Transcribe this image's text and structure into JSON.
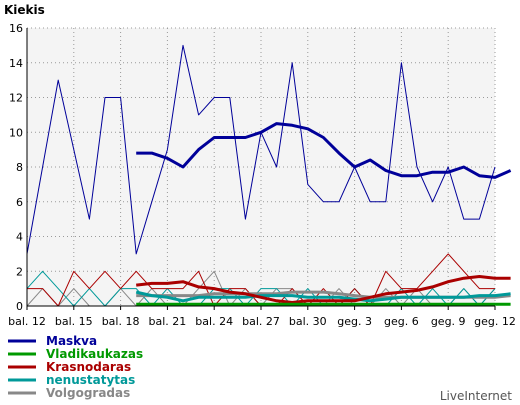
{
  "chart_data": {
    "type": "line",
    "title": "Kiekis",
    "ylim": [
      0,
      16
    ],
    "y_ticks": [
      0,
      2,
      4,
      6,
      8,
      10,
      12,
      14,
      16
    ],
    "x_tick_labels": [
      "bal. 12",
      "bal. 15",
      "bal. 18",
      "bal. 21",
      "bal. 24",
      "bal. 27",
      "bal. 30",
      "geg. 3",
      "geg. 6",
      "geg. 9",
      "geg. 12"
    ],
    "x_tick_step": 3,
    "days": 31,
    "grid": true,
    "brand": "LiveInternet",
    "series": [
      {
        "name": "Maskva",
        "color": "#000099",
        "daily": [
          3,
          8,
          13,
          9,
          5,
          12,
          12,
          3,
          6,
          9,
          15,
          11,
          12,
          12,
          5,
          10,
          8,
          14,
          7,
          6,
          6,
          8,
          6,
          6,
          14,
          8,
          6,
          8,
          5,
          5,
          8
        ],
        "avg_start": 7,
        "average": [
          8.8,
          8.8,
          8.5,
          8,
          9,
          9.7,
          9.7,
          9.7,
          10,
          10.5,
          10.4,
          10.2,
          9.7,
          8.8,
          8,
          8.4,
          7.8,
          7.5,
          7.5,
          7.7,
          7.7,
          8,
          7.5,
          7.4,
          7.8
        ]
      },
      {
        "name": "Vladikaukazas",
        "color": "#009900",
        "daily": [
          0,
          0,
          0,
          0,
          0,
          0,
          0,
          0,
          0,
          0,
          0,
          0,
          0,
          0,
          0,
          0,
          0,
          0,
          0,
          0,
          0,
          0,
          0,
          0,
          0,
          0,
          0,
          0,
          0,
          0,
          0
        ],
        "avg_start": 7,
        "average": [
          0.1,
          0.1,
          0.1,
          0.1,
          0.1,
          0.1,
          0.1,
          0.1,
          0.1,
          0.1,
          0.1,
          0.1,
          0.1,
          0.1,
          0.1,
          0.1,
          0.1,
          0.1,
          0.1,
          0.1,
          0.1,
          0.1,
          0.1,
          0.1,
          0.1
        ]
      },
      {
        "name": "Krasnodaras",
        "color": "#aa0000",
        "daily": [
          1,
          1,
          0,
          2,
          1,
          2,
          1,
          2,
          1,
          1,
          1,
          2,
          0,
          1,
          1,
          0,
          0,
          1,
          0,
          1,
          0,
          1,
          0,
          2,
          1,
          1,
          2,
          3,
          2,
          1,
          1
        ],
        "avg_start": 7,
        "average": [
          1.2,
          1.3,
          1.3,
          1.4,
          1.1,
          1,
          0.8,
          0.7,
          0.5,
          0.3,
          0.2,
          0.3,
          0.3,
          0.3,
          0.3,
          0.5,
          0.7,
          0.8,
          0.9,
          1.1,
          1.4,
          1.6,
          1.7,
          1.6,
          1.6
        ]
      },
      {
        "name": "nenustatytas",
        "color": "#009999",
        "daily": [
          1,
          2,
          1,
          0,
          1,
          0,
          1,
          1,
          0,
          1,
          0,
          0,
          1,
          1,
          0,
          1,
          1,
          0,
          1,
          0,
          0,
          1,
          0,
          0,
          1,
          0,
          1,
          0,
          1,
          0,
          1
        ],
        "avg_start": 7,
        "average": [
          0.8,
          0.6,
          0.5,
          0.3,
          0.5,
          0.5,
          0.5,
          0.5,
          0.6,
          0.6,
          0.6,
          0.5,
          0.5,
          0.5,
          0.4,
          0.3,
          0.4,
          0.5,
          0.5,
          0.5,
          0.5,
          0.5,
          0.6,
          0.6,
          0.7
        ]
      },
      {
        "name": "Volgogradas",
        "color": "#888888",
        "daily": [
          0,
          1,
          0,
          1,
          0,
          0,
          1,
          0,
          1,
          0,
          0,
          1,
          2,
          0,
          1,
          0,
          1,
          1,
          0,
          0,
          1,
          0,
          0,
          1,
          0,
          1,
          0,
          0,
          1,
          0,
          1
        ],
        "avg_start": 7,
        "average": [
          0.6,
          0.6,
          0.6,
          0.6,
          0.6,
          0.7,
          0.7,
          0.7,
          0.7,
          0.7,
          0.8,
          0.8,
          0.8,
          0.7,
          0.6,
          0.5,
          0.5,
          0.5,
          0.5,
          0.5,
          0.5,
          0.5,
          0.5,
          0.5,
          0.6
        ]
      }
    ]
  }
}
